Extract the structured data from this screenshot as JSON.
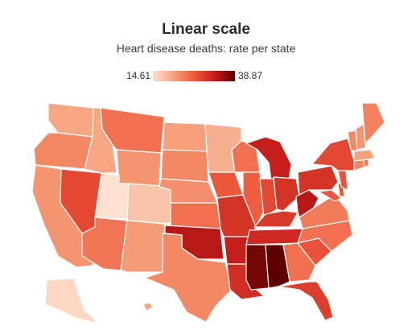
{
  "title": "Linear scale",
  "subtitle": "Heart disease deaths: rate per state",
  "legend": {
    "min_label": "14.61",
    "max_label": "38.87",
    "min_value": 14.61,
    "max_value": 38.87,
    "color_low": "#fde0d0",
    "color_high": "#5e0000"
  },
  "states": [
    {
      "id": "WA",
      "value": 20.5
    },
    {
      "id": "OR",
      "value": 23.0
    },
    {
      "id": "CA",
      "value": 22.0
    },
    {
      "id": "NV",
      "value": 28.5
    },
    {
      "id": "ID",
      "value": 20.5
    },
    {
      "id": "MT",
      "value": 25.0
    },
    {
      "id": "WY",
      "value": 22.0
    },
    {
      "id": "UT",
      "value": 14.61
    },
    {
      "id": "CO",
      "value": 17.5
    },
    {
      "id": "AZ",
      "value": 24.5
    },
    {
      "id": "NM",
      "value": 21.5
    },
    {
      "id": "ND",
      "value": 21.0
    },
    {
      "id": "SD",
      "value": 23.0
    },
    {
      "id": "NE",
      "value": 22.5
    },
    {
      "id": "KS",
      "value": 25.0
    },
    {
      "id": "OK",
      "value": 33.5
    },
    {
      "id": "TX",
      "value": 23.0
    },
    {
      "id": "MN",
      "value": 19.5
    },
    {
      "id": "IA",
      "value": 27.0
    },
    {
      "id": "MO",
      "value": 30.5
    },
    {
      "id": "AR",
      "value": 32.5
    },
    {
      "id": "LA",
      "value": 31.0
    },
    {
      "id": "WI",
      "value": 25.0
    },
    {
      "id": "IL",
      "value": 26.5
    },
    {
      "id": "MI",
      "value": 32.5
    },
    {
      "id": "IN",
      "value": 28.5
    },
    {
      "id": "OH",
      "value": 30.5
    },
    {
      "id": "KY",
      "value": 30.0
    },
    {
      "id": "TN",
      "value": 31.5
    },
    {
      "id": "MS",
      "value": 37.5
    },
    {
      "id": "AL",
      "value": 38.87
    },
    {
      "id": "GA",
      "value": 25.0
    },
    {
      "id": "FL",
      "value": 29.5
    },
    {
      "id": "SC",
      "value": 27.5
    },
    {
      "id": "NC",
      "value": 25.0
    },
    {
      "id": "VA",
      "value": 24.0
    },
    {
      "id": "WV",
      "value": 33.5
    },
    {
      "id": "PA",
      "value": 30.5
    },
    {
      "id": "NY",
      "value": 28.5
    },
    {
      "id": "MD",
      "value": 27.0
    },
    {
      "id": "DE",
      "value": 27.0
    },
    {
      "id": "NJ",
      "value": 27.5
    },
    {
      "id": "CT",
      "value": 23.5
    },
    {
      "id": "RI",
      "value": 24.0
    },
    {
      "id": "MA",
      "value": 21.0
    },
    {
      "id": "VT",
      "value": 23.0
    },
    {
      "id": "NH",
      "value": 22.0
    },
    {
      "id": "ME",
      "value": 23.5
    },
    {
      "id": "AK",
      "value": 15.5
    },
    {
      "id": "HI",
      "value": 20.5
    }
  ]
}
